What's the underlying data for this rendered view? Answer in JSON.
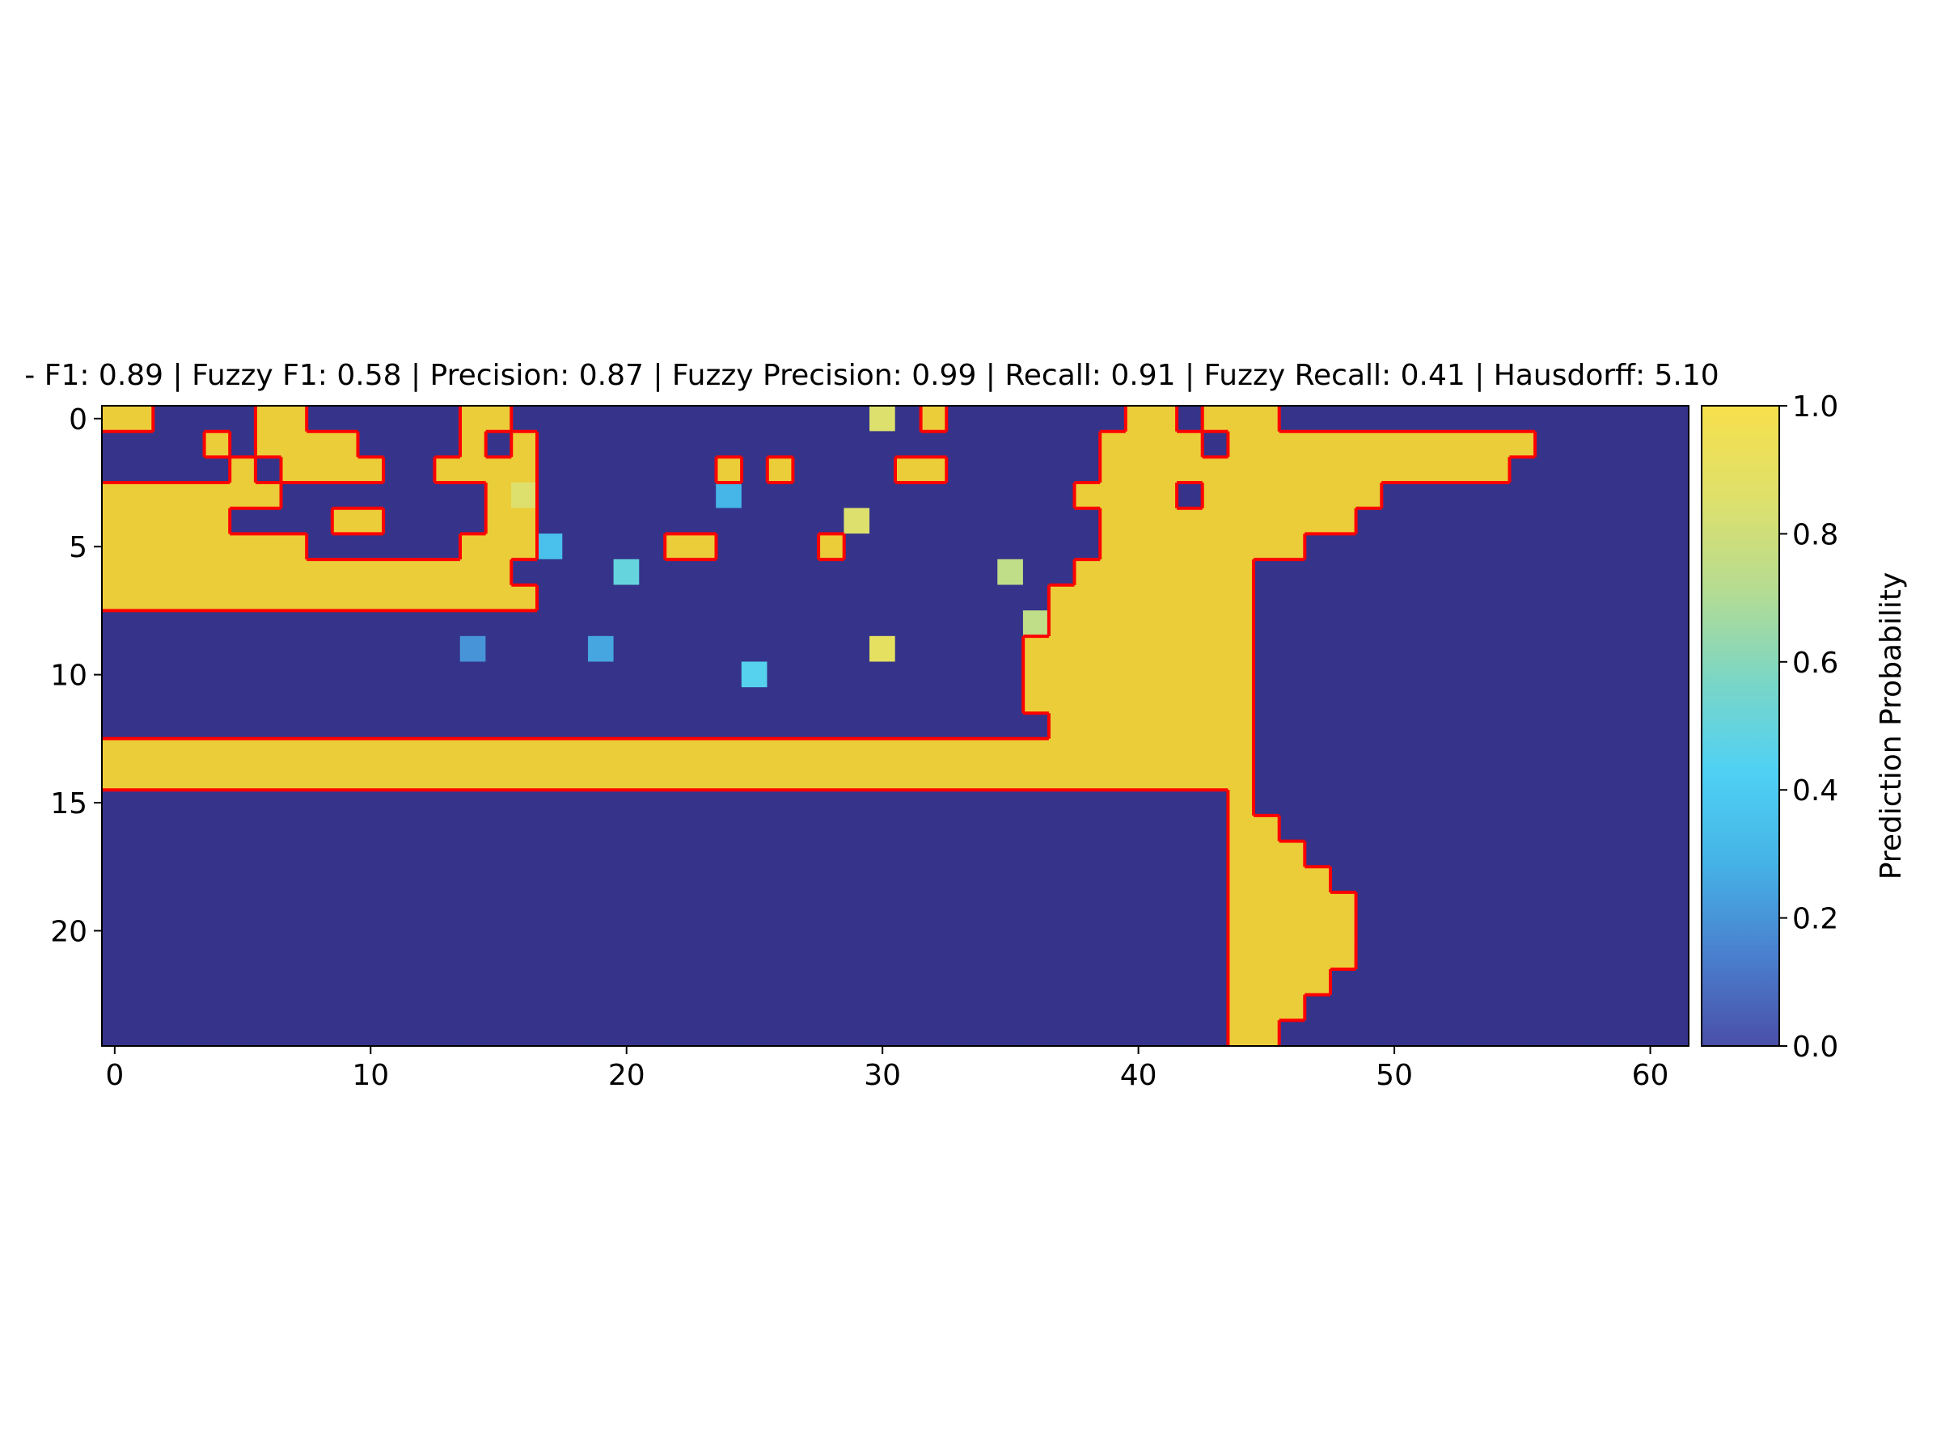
{
  "chart_data": {
    "type": "heatmap",
    "title": "- F1: 0.89 | Fuzzy F1: 0.58 | Precision: 0.87 | Fuzzy Precision: 0.99 | Recall: 0.91 | Fuzzy Recall: 0.41 | Hausdorff: 5.10",
    "xlabel": "",
    "ylabel": "",
    "x_range": [
      -0.5,
      61.5
    ],
    "y_range": [
      -0.5,
      24.5
    ],
    "y_inverted": true,
    "x_ticks": [
      0,
      10,
      20,
      30,
      40,
      50,
      60
    ],
    "y_ticks": [
      0,
      5,
      10,
      15,
      20
    ],
    "grid": false,
    "colorbar": {
      "label": "Prediction Probability",
      "range": [
        0.0,
        1.0
      ],
      "ticks": [
        "0.0",
        "0.2",
        "0.4",
        "0.6",
        "0.8",
        "1.0"
      ],
      "colormap": [
        "#4a4fa8",
        "#4a80cf",
        "#45b3e6",
        "#4fd1f5",
        "#7bd6c5",
        "#b6dc91",
        "#dfe06a",
        "#f7e04b"
      ]
    },
    "colors": {
      "low": "#35348a",
      "high": "#ebcd3a",
      "contour": "#ff0000"
    },
    "grid_rows": [
      "11000011000000110000000000000000100000001101110000000000000000",
      "00001011110000101000000000000000000000011110111111111111000000",
      "00000101111001111000000010100001100000011111111111111110000000",
      "11111110000000011000000000000000000000111101111111000000000000",
      "11111000011000011000000000000000000000011111111110000000000000",
      "11111111000000111000001100001000000000011111111000000000000000",
      "11111111111111110000000000000000000000111111100000000000000000",
      "11111111111111111000000000000000000001111111100000000000000000",
      "00000000000000000000000000000000000001111111100000000000000000",
      "00000000000000000000000000000000000011111111100000000000000000",
      "00000000000000000000000000000000000011111111100000000000000000",
      "00000000000000000000000000000000000011111111100000000000000000",
      "00000000000000000000000000000000000001111111100000000000000000",
      "11111111111111111111111111111111111111111111100000000000000000",
      "11111111111111111111111111111111111111111111100000000000000000",
      "00000000000000000000000000000000000000000000100000000000000000",
      "00000000000000000000000000000000000000000000110000000000000000",
      "00000000000000000000000000000000000000000000111000000000000000",
      "00000000000000000000000000000000000000000000111100000000000000",
      "00000000000000000000000000000000000000000000111110000000000000",
      "00000000000000000000000000000000000000000000111110000000000000",
      "00000000000000000000000000000000000000000000111110000000000000",
      "00000000000000000000000000000000000000000000111100000000000000",
      "00000000000000000000000000000000000000000000111000000000000000",
      "00000000000000000000000000000000000000000000110000000000000000"
    ],
    "intermediate_cells": [
      {
        "row": 0,
        "col": 30,
        "value": 0.85
      },
      {
        "row": 3,
        "col": 16,
        "value": 0.85
      },
      {
        "row": 3,
        "col": 24,
        "value": 0.3
      },
      {
        "row": 4,
        "col": 29,
        "value": 0.85
      },
      {
        "row": 5,
        "col": 17,
        "value": 0.35
      },
      {
        "row": 6,
        "col": 20,
        "value": 0.5
      },
      {
        "row": 6,
        "col": 35,
        "value": 0.75
      },
      {
        "row": 8,
        "col": 36,
        "value": 0.75
      },
      {
        "row": 9,
        "col": 14,
        "value": 0.2
      },
      {
        "row": 9,
        "col": 19,
        "value": 0.25
      },
      {
        "row": 9,
        "col": 30,
        "value": 0.9
      },
      {
        "row": 10,
        "col": 25,
        "value": 0.45
      }
    ]
  }
}
